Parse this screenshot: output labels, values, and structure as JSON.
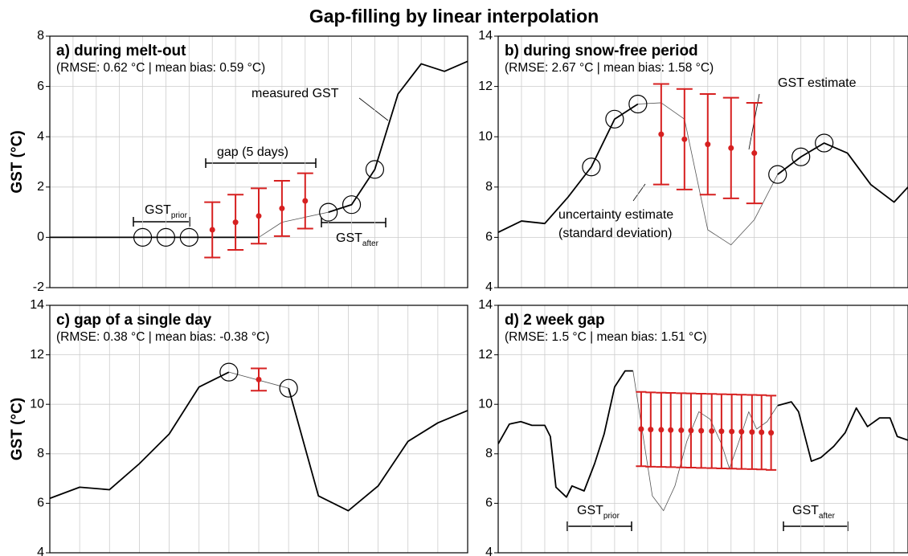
{
  "title": "Gap-filling by linear interpolation",
  "chart_data": [
    {
      "type": "line",
      "title": "a) during melt-out",
      "subtitle": "(RMSE: 0.62 °C | mean bias: 0.59 °C)",
      "ylabel": "GST (°C)",
      "xlim": [
        0,
        18
      ],
      "ylim": [
        -2,
        8
      ],
      "yticks": [
        -2,
        0,
        2,
        4,
        6,
        8
      ],
      "grid": true,
      "series": [
        {
          "color": "#000000",
          "width": 1.8,
          "x": [
            0,
            1,
            2,
            3,
            4,
            5,
            6,
            7,
            8,
            9
          ],
          "values": [
            0,
            0,
            0,
            0,
            0,
            0,
            0,
            0,
            0,
            0
          ]
        },
        {
          "color": "#555555",
          "width": 0.8,
          "x": [
            9,
            10,
            11,
            12
          ],
          "values": [
            0,
            0.6,
            0.8,
            1.0
          ]
        },
        {
          "color": "#000000",
          "width": 1.8,
          "x": [
            12,
            13,
            14,
            15,
            16,
            17,
            18
          ],
          "values": [
            1.0,
            1.3,
            2.7,
            5.7,
            6.9,
            6.6,
            7.0
          ]
        }
      ],
      "markers": {
        "x": [
          4,
          5,
          6,
          12,
          13,
          14
        ],
        "values": [
          0,
          0,
          0,
          1.0,
          1.3,
          2.7
        ]
      },
      "estimates": {
        "color": "#d62020",
        "x": [
          7,
          8,
          9,
          10,
          11
        ],
        "values": [
          0.3,
          0.6,
          0.85,
          1.15,
          1.45
        ],
        "errors": [
          1.1,
          1.1,
          1.1,
          1.1,
          1.1
        ]
      },
      "annotations": [
        "measured GST",
        "gap (5 days)",
        {
          "text": "GST",
          "sub": "prior"
        },
        {
          "text": "GST",
          "sub": "after"
        }
      ]
    },
    {
      "type": "line",
      "title": "b) during snow-free period",
      "subtitle": "(RMSE: 2.67 °C | mean bias: 1.58 °C)",
      "xlim": [
        0,
        17.6
      ],
      "ylim": [
        4,
        14
      ],
      "yticks": [
        4,
        6,
        8,
        10,
        12,
        14
      ],
      "grid": true,
      "series": [
        {
          "color": "#000000",
          "width": 1.8,
          "x": [
            0,
            1,
            2,
            3,
            4,
            5,
            6
          ],
          "values": [
            6.2,
            6.65,
            6.55,
            7.6,
            8.8,
            10.7,
            11.3
          ]
        },
        {
          "color": "#555555",
          "width": 0.8,
          "x": [
            6,
            7,
            8,
            9,
            10,
            11,
            12
          ],
          "values": [
            11.3,
            11.35,
            10.7,
            6.3,
            5.7,
            6.7,
            8.5
          ]
        },
        {
          "color": "#000000",
          "width": 1.8,
          "x": [
            12,
            13,
            14,
            15,
            16,
            17,
            17.6
          ],
          "values": [
            8.5,
            9.2,
            9.75,
            9.35,
            8.1,
            7.4,
            8.0
          ]
        }
      ],
      "markers": {
        "x": [
          4,
          5,
          6,
          12,
          13,
          14
        ],
        "values": [
          8.8,
          10.7,
          11.3,
          8.5,
          9.2,
          9.75
        ]
      },
      "estimates": {
        "color": "#d62020",
        "x": [
          7,
          8,
          9,
          10,
          11
        ],
        "values": [
          10.1,
          9.9,
          9.7,
          9.55,
          9.35
        ],
        "errors": [
          2.0,
          2.0,
          2.0,
          2.0,
          2.0
        ]
      },
      "annotations": [
        "GST estimate",
        "uncertainty estimate",
        "(standard deviation)"
      ]
    },
    {
      "type": "line",
      "title": "c) gap of a single day",
      "subtitle": "(RMSE: 0.38 °C | mean bias: -0.38 °C)",
      "ylabel": "GST (°C)",
      "xlim": [
        0,
        14
      ],
      "ylim": [
        4,
        14
      ],
      "yticks": [
        4,
        6,
        8,
        10,
        12,
        14
      ],
      "grid": true,
      "series": [
        {
          "color": "#000000",
          "width": 1.8,
          "x": [
            0,
            1,
            2,
            3,
            4,
            5,
            6
          ],
          "values": [
            6.2,
            6.65,
            6.55,
            7.6,
            8.8,
            10.7,
            11.3
          ]
        },
        {
          "color": "#555555",
          "width": 0.8,
          "x": [
            6,
            8
          ],
          "values": [
            11.3,
            10.65
          ]
        },
        {
          "color": "#000000",
          "width": 1.8,
          "x": [
            8,
            9,
            10,
            11,
            12,
            13,
            14
          ],
          "values": [
            10.65,
            6.3,
            5.7,
            6.7,
            8.5,
            9.25,
            9.75
          ]
        }
      ],
      "markers": {
        "x": [
          6,
          8
        ],
        "values": [
          11.3,
          10.65
        ]
      },
      "estimates": {
        "color": "#d62020",
        "x": [
          7
        ],
        "values": [
          11.0
        ],
        "errors": [
          0.45
        ]
      },
      "annotations": []
    },
    {
      "type": "line",
      "title": "d) 2 week gap",
      "subtitle": "(RMSE: 1.5 °C | mean bias: 1.51 °C)",
      "xlim": [
        0,
        17.6
      ],
      "ylim": [
        4,
        14
      ],
      "yticks": [
        4,
        6,
        8,
        10,
        12,
        14
      ],
      "grid": true,
      "series": [
        {
          "color": "#000000",
          "width": 1.8,
          "x": [
            0,
            0.48,
            0.97,
            1.45,
            2.0,
            2.24,
            2.48,
            2.93,
            3.17,
            3.69,
            4.14,
            4.55,
            5.0,
            5.45,
            5.79
          ],
          "values": [
            8.4,
            9.2,
            9.3,
            9.15,
            9.15,
            8.7,
            6.65,
            6.25,
            6.7,
            6.5,
            7.6,
            8.8,
            10.7,
            11.35,
            11.35
          ]
        },
        {
          "color": "#555555",
          "width": 0.8,
          "x": [
            5.79,
            6.62,
            7.1,
            7.59,
            8.1,
            8.62,
            9.1,
            9.59,
            9.93,
            10.34,
            10.76,
            11.1,
            11.55,
            12.0
          ],
          "values": [
            11.35,
            6.3,
            5.7,
            6.7,
            8.5,
            9.7,
            9.4,
            8.4,
            7.4,
            8.5,
            9.7,
            9.0,
            9.3,
            9.95
          ]
        },
        {
          "color": "#000000",
          "width": 1.8,
          "x": [
            12.0,
            12.59,
            12.9,
            13.45,
            13.86,
            14.41,
            14.9,
            15.38,
            15.86,
            16.38,
            16.83,
            17.14,
            17.6
          ],
          "values": [
            9.95,
            10.1,
            9.7,
            7.7,
            7.85,
            8.3,
            8.85,
            9.85,
            9.1,
            9.45,
            9.45,
            8.7,
            8.55
          ]
        }
      ],
      "markers": {
        "x": [],
        "values": []
      },
      "estimates": {
        "color": "#d62020",
        "x": [
          6.14,
          6.55,
          7.0,
          7.41,
          7.86,
          8.28,
          8.72,
          9.17,
          9.59,
          10.03,
          10.45,
          10.9,
          11.31,
          11.72
        ],
        "values": [
          9.0,
          8.98,
          8.97,
          8.96,
          8.95,
          8.94,
          8.93,
          8.92,
          8.91,
          8.9,
          8.89,
          8.88,
          8.87,
          8.85
        ],
        "errors": [
          1.5,
          1.5,
          1.5,
          1.5,
          1.5,
          1.5,
          1.5,
          1.5,
          1.5,
          1.5,
          1.5,
          1.5,
          1.5,
          1.5
        ]
      },
      "annotations": [
        {
          "text": "GST",
          "sub": "prior"
        },
        {
          "text": "GST",
          "sub": "after"
        }
      ]
    }
  ]
}
